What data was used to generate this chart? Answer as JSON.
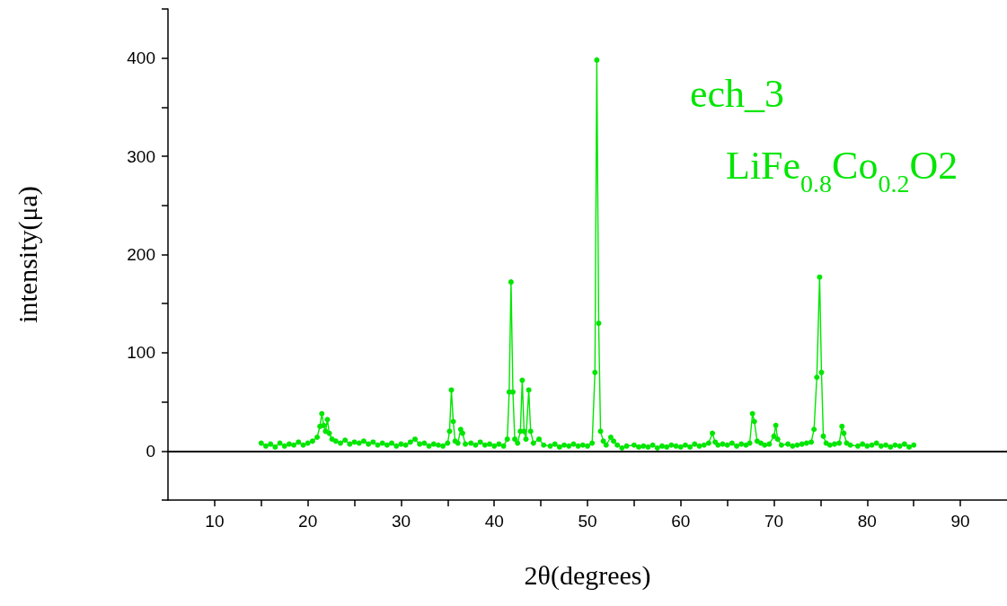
{
  "chart_data": {
    "type": "line",
    "xlabel": "2θ(degrees)",
    "ylabel": "intensity(μa)",
    "annotations": [
      "ech_3",
      "LiFe$_{0.8}$Co$_{0.2}$O2"
    ],
    "xlim": [
      5,
      95
    ],
    "ylim": [
      -50,
      450
    ],
    "xticks": [
      10,
      {
        "value": 15,
        "label": null
      },
      20,
      {
        "value": 25,
        "label": null
      },
      30,
      {
        "value": 35,
        "label": null
      },
      40,
      {
        "value": 45,
        "label": null
      },
      50,
      {
        "value": 55,
        "label": null
      },
      60,
      {
        "value": 65,
        "label": null
      },
      70,
      {
        "value": 75,
        "label": null
      },
      80,
      {
        "value": 85,
        "label": null
      },
      90
    ],
    "yticks": [
      {
        "value": -50,
        "label": null
      },
      0,
      {
        "value": 50,
        "label": null
      },
      100,
      {
        "value": 150,
        "label": null
      },
      200,
      {
        "value": 250,
        "label": null
      },
      300,
      {
        "value": 350,
        "label": null
      },
      400,
      {
        "value": 450,
        "label": null
      }
    ],
    "ref_lines": [
      {
        "axis": "y",
        "value": 0,
        "color": "#000000",
        "line_style": "solid"
      }
    ],
    "grid": false,
    "marker": "circle",
    "line_style": "solid",
    "series": [
      {
        "color": "#00e600",
        "x": [
          15,
          15.5,
          16,
          16.5,
          17,
          17.5,
          18,
          18.5,
          19,
          19.5,
          20,
          20.5,
          21,
          21.3,
          21.5,
          21.7,
          21.9,
          22.1,
          22.3,
          22.6,
          23,
          23.5,
          24,
          24.5,
          25,
          25.5,
          26,
          26.5,
          27,
          27.5,
          28,
          28.5,
          29,
          29.5,
          30,
          30.5,
          31,
          31.5,
          32,
          32.5,
          33,
          33.5,
          34,
          34.5,
          35,
          35.2,
          35.4,
          35.6,
          35.8,
          36.1,
          36.4,
          36.6,
          36.9,
          37.5,
          38,
          38.5,
          39,
          39.5,
          40,
          40.5,
          41,
          41.4,
          41.6,
          41.8,
          42,
          42.2,
          42.5,
          42.8,
          43,
          43.2,
          43.4,
          43.7,
          43.9,
          44.2,
          44.8,
          45.3,
          46,
          46.5,
          47,
          47.5,
          48,
          48.5,
          49,
          49.5,
          50,
          50.5,
          50.8,
          51,
          51.2,
          51.4,
          51.7,
          52,
          52.5,
          52.8,
          53.2,
          53.7,
          54.2,
          55,
          55.5,
          56,
          56.5,
          57,
          57.5,
          58,
          58.5,
          59,
          59.5,
          60,
          60.5,
          61,
          61.5,
          62,
          62.5,
          63,
          63.4,
          63.7,
          64,
          64.5,
          65,
          65.5,
          66,
          66.5,
          67,
          67.4,
          67.7,
          67.9,
          68.2,
          68.6,
          69,
          69.5,
          70,
          70.2,
          70.4,
          70.8,
          71.5,
          72,
          72.5,
          73,
          73.5,
          74,
          74.3,
          74.6,
          74.9,
          75.1,
          75.3,
          75.6,
          76,
          76.5,
          77,
          77.3,
          77.5,
          77.8,
          78.2,
          79,
          79.5,
          80,
          80.5,
          81,
          81.5,
          82,
          82.5,
          83,
          83.5,
          84,
          84.5,
          85
        ],
        "values": [
          8,
          5,
          7,
          4,
          8,
          5,
          7,
          6,
          9,
          6,
          8,
          10,
          14,
          25,
          38,
          26,
          20,
          32,
          18,
          12,
          10,
          8,
          11,
          7,
          9,
          8,
          10,
          7,
          9,
          6,
          8,
          6,
          8,
          5,
          7,
          6,
          9,
          12,
          7,
          8,
          5,
          7,
          6,
          5,
          8,
          20,
          62,
          30,
          10,
          8,
          22,
          18,
          7,
          8,
          6,
          9,
          6,
          7,
          5,
          7,
          5,
          12,
          60,
          172,
          60,
          12,
          8,
          20,
          72,
          20,
          12,
          62,
          20,
          8,
          12,
          6,
          5,
          7,
          4,
          6,
          5,
          7,
          5,
          6,
          5,
          8,
          80,
          398,
          130,
          20,
          10,
          6,
          14,
          10,
          6,
          3,
          5,
          6,
          4,
          5,
          4,
          6,
          3,
          5,
          4,
          6,
          5,
          4,
          6,
          4,
          7,
          5,
          6,
          8,
          18,
          9,
          6,
          7,
          6,
          8,
          5,
          7,
          6,
          8,
          38,
          30,
          10,
          8,
          6,
          7,
          15,
          26,
          12,
          6,
          7,
          5,
          6,
          7,
          8,
          9,
          22,
          75,
          177,
          80,
          15,
          8,
          6,
          7,
          8,
          25,
          18,
          8,
          6,
          5,
          7,
          5,
          6,
          8,
          5,
          6,
          4,
          6,
          5,
          7,
          4,
          6
        ]
      }
    ]
  }
}
